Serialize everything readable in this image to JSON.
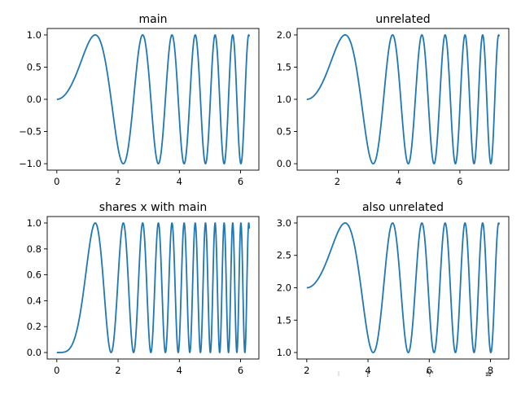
{
  "figure": {
    "stray_marks": [
      "f",
      "♈",
      "≡"
    ]
  },
  "colors": {
    "line": "#1f77b4",
    "axes": "#000000",
    "background": "#ffffff"
  },
  "chart_data": [
    {
      "type": "line",
      "title": "main",
      "function": "sin(x^2)",
      "x_range": [
        0,
        6.2832
      ],
      "xlim": [
        -0.314,
        6.597
      ],
      "ylim": [
        -1.1,
        1.1
      ],
      "xticks": [
        0,
        2,
        4,
        6
      ],
      "xtick_labels": [
        "0",
        "2",
        "4",
        "6"
      ],
      "yticks": [
        -1.0,
        -0.5,
        0.0,
        0.5,
        1.0
      ],
      "ytick_labels": [
        "−1.0",
        "−0.5",
        "0.0",
        "0.5",
        "1.0"
      ],
      "xlabel": "",
      "ylabel": "",
      "grid": false,
      "legend": "none"
    },
    {
      "type": "line",
      "title": "unrelated",
      "function": "1 + sin((x-1)^2)",
      "x_range": [
        1,
        7.2832
      ],
      "xlim": [
        0.686,
        7.597
      ],
      "ylim": [
        -0.1,
        2.1
      ],
      "xticks": [
        2,
        4,
        6
      ],
      "xtick_labels": [
        "2",
        "4",
        "6"
      ],
      "yticks": [
        0.0,
        0.5,
        1.0,
        1.5,
        2.0
      ],
      "ytick_labels": [
        "0.0",
        "0.5",
        "1.0",
        "1.5",
        "2.0"
      ],
      "xlabel": "",
      "ylabel": "",
      "grid": false,
      "legend": "none"
    },
    {
      "type": "line",
      "title": "shares x with main",
      "function": "sin(x^2)^2",
      "x_range": [
        0,
        6.2832
      ],
      "xlim": [
        -0.314,
        6.597
      ],
      "ylim": [
        -0.05,
        1.05
      ],
      "xticks": [
        0,
        2,
        4,
        6
      ],
      "xtick_labels": [
        "0",
        "2",
        "4",
        "6"
      ],
      "yticks": [
        0.0,
        0.2,
        0.4,
        0.6,
        0.8,
        1.0
      ],
      "ytick_labels": [
        "0.0",
        "0.2",
        "0.4",
        "0.6",
        "0.8",
        "1.0"
      ],
      "xlabel": "",
      "ylabel": "",
      "grid": false,
      "legend": "none"
    },
    {
      "type": "line",
      "title": "also unrelated",
      "function": "2 + sin((x-2)^2)",
      "x_range": [
        2,
        8.2832
      ],
      "xlim": [
        1.686,
        8.597
      ],
      "ylim": [
        0.9,
        3.1
      ],
      "xticks": [
        2,
        4,
        6,
        8
      ],
      "xtick_labels": [
        "2",
        "4",
        "6",
        "8"
      ],
      "yticks": [
        1.0,
        1.5,
        2.0,
        2.5,
        3.0
      ],
      "ytick_labels": [
        "1.0",
        "1.5",
        "2.0",
        "2.5",
        "3.0"
      ],
      "xlabel": "",
      "ylabel": "",
      "grid": false,
      "legend": "none"
    }
  ]
}
